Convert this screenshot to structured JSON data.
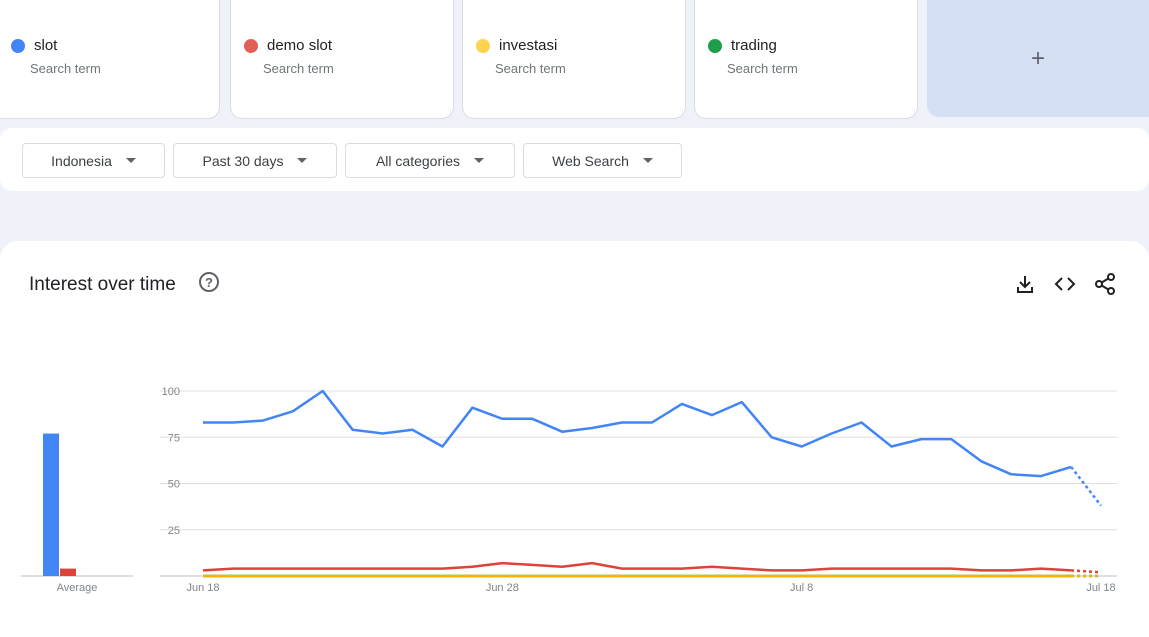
{
  "terms": [
    {
      "name": "slot",
      "sub": "Search term",
      "color": "#4285f4"
    },
    {
      "name": "demo slot",
      "sub": "Search term",
      "color": "#ea4335"
    },
    {
      "name": "investasi",
      "sub": "Search term",
      "color": "#fbbc04"
    },
    {
      "name": "trading",
      "sub": "Search term",
      "color": "#34a853"
    }
  ],
  "add_label": "+",
  "filters": {
    "region": "Indonesia",
    "period": "Past 30 days",
    "category": "All categories",
    "property": "Web Search"
  },
  "panel": {
    "title": "Interest over time",
    "help_glyph": "?",
    "icons": [
      "download-icon",
      "embed-code-icon",
      "share-icon"
    ]
  },
  "chart_data": {
    "type": "line",
    "x_ticks": [
      "Jun 18",
      "Jun 28",
      "Jul 8",
      "Jul 18"
    ],
    "y_ticks": [
      100,
      75,
      50,
      25
    ],
    "ylim": [
      0,
      100
    ],
    "grid": true,
    "partial_last_point": true,
    "average_label": "Average",
    "averages": [
      {
        "term": "slot",
        "value": 77
      },
      {
        "term": "demo slot",
        "value": 4
      },
      {
        "term": "investasi",
        "value": 0
      },
      {
        "term": "trading",
        "value": 0
      }
    ],
    "series": [
      {
        "term": "slot",
        "color": "#4285f4",
        "values": [
          83,
          83,
          84,
          89,
          100,
          79,
          77,
          79,
          70,
          91,
          85,
          85,
          78,
          80,
          83,
          83,
          93,
          87,
          94,
          75,
          70,
          77,
          83,
          70,
          74,
          74,
          62,
          55,
          54,
          59,
          38
        ]
      },
      {
        "term": "demo slot",
        "color": "#db4437",
        "values": [
          3,
          4,
          4,
          4,
          4,
          4,
          4,
          4,
          4,
          5,
          7,
          6,
          5,
          7,
          4,
          4,
          4,
          5,
          4,
          3,
          3,
          4,
          4,
          4,
          4,
          4,
          3,
          3,
          4,
          3,
          2
        ]
      },
      {
        "term": "investasi",
        "color": "#f4b400",
        "values": [
          0,
          0,
          0,
          0,
          0,
          0,
          0,
          0,
          0,
          0,
          0,
          0,
          0,
          0,
          0,
          0,
          0,
          0,
          0,
          0,
          0,
          0,
          0,
          0,
          0,
          0,
          0,
          0,
          0,
          0,
          0
        ]
      },
      {
        "term": "trading",
        "color": "#0f9d58",
        "values": [
          0,
          0,
          0,
          0,
          0,
          0,
          0,
          0,
          0,
          0,
          0,
          0,
          0,
          0,
          0,
          0,
          0,
          0,
          0,
          0,
          0,
          0,
          0,
          0,
          0,
          0,
          0,
          0,
          0,
          0,
          0
        ]
      }
    ]
  }
}
